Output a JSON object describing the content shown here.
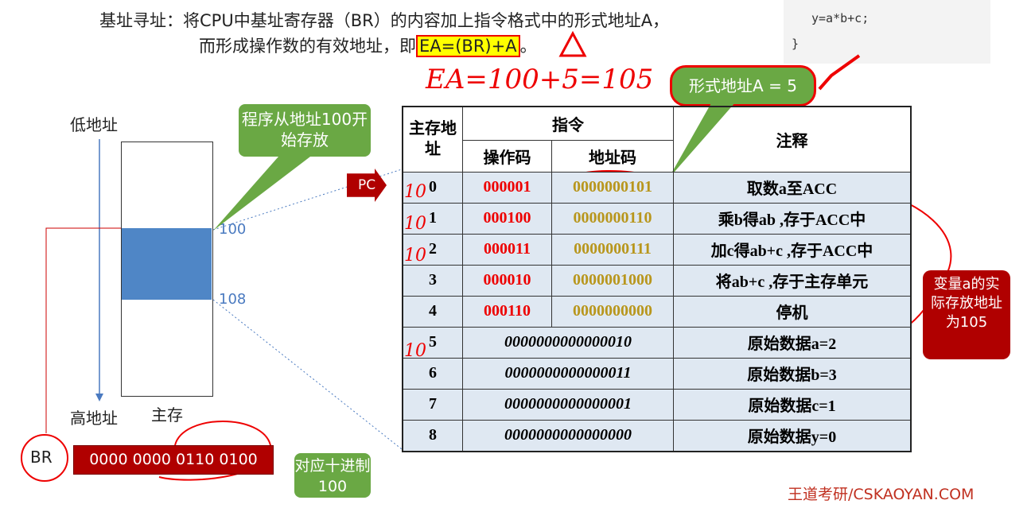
{
  "header": {
    "line1": "基址寻址：将CPU中基址寄存器（BR）的内容加上指令格式中的形式地址A，",
    "line2_prefix": "而形成操作数的有效地址，即",
    "formula": "EA=(BR)+A",
    "line2_suffix": "。"
  },
  "code": {
    "line1": "y=a*b+c;",
    "line2": "}"
  },
  "handwriting": {
    "calc": "EA=100+5=105",
    "row_prefix": "10"
  },
  "callouts": {
    "program_start": "程序从地址100开始存放",
    "formal_address": "形式地址A = 5",
    "actual_address": "变量a的实际存放地址为105",
    "decimal": "对应十进制100"
  },
  "memory": {
    "low": "低地址",
    "high": "高地址",
    "label": "主存",
    "start": "100",
    "end": "108"
  },
  "registers": {
    "pc": "PC",
    "br": "BR",
    "br_value": "0000 0000 0110 0100"
  },
  "table": {
    "headers": {
      "addr": "主存地址",
      "instr": "指令",
      "opcode": "操作码",
      "addrcode": "地址码",
      "note": "注释"
    },
    "rows": [
      {
        "addr": "0",
        "op": "000001",
        "ad": "0000000101",
        "note": "取数a至ACC"
      },
      {
        "addr": "1",
        "op": "000100",
        "ad": "0000000110",
        "note": "乘b得ab ,存于ACC中"
      },
      {
        "addr": "2",
        "op": "000011",
        "ad": "0000000111",
        "note": "加c得ab+c ,存于ACC中"
      },
      {
        "addr": "3",
        "op": "000010",
        "ad": "0000001000",
        "note": "将ab+c ,存于主存单元"
      },
      {
        "addr": "4",
        "op": "000110",
        "ad": "0000000000",
        "note": "停机"
      },
      {
        "addr": "5",
        "data": "0000000000000010",
        "note": "原始数据a=2"
      },
      {
        "addr": "6",
        "data": "0000000000000011",
        "note": "原始数据b=3"
      },
      {
        "addr": "7",
        "data": "0000000000000001",
        "note": "原始数据c=1"
      },
      {
        "addr": "8",
        "data": "0000000000000000",
        "note": "原始数据y=0"
      }
    ]
  },
  "watermark": "王道考研/CSKAOYAN.COM"
}
